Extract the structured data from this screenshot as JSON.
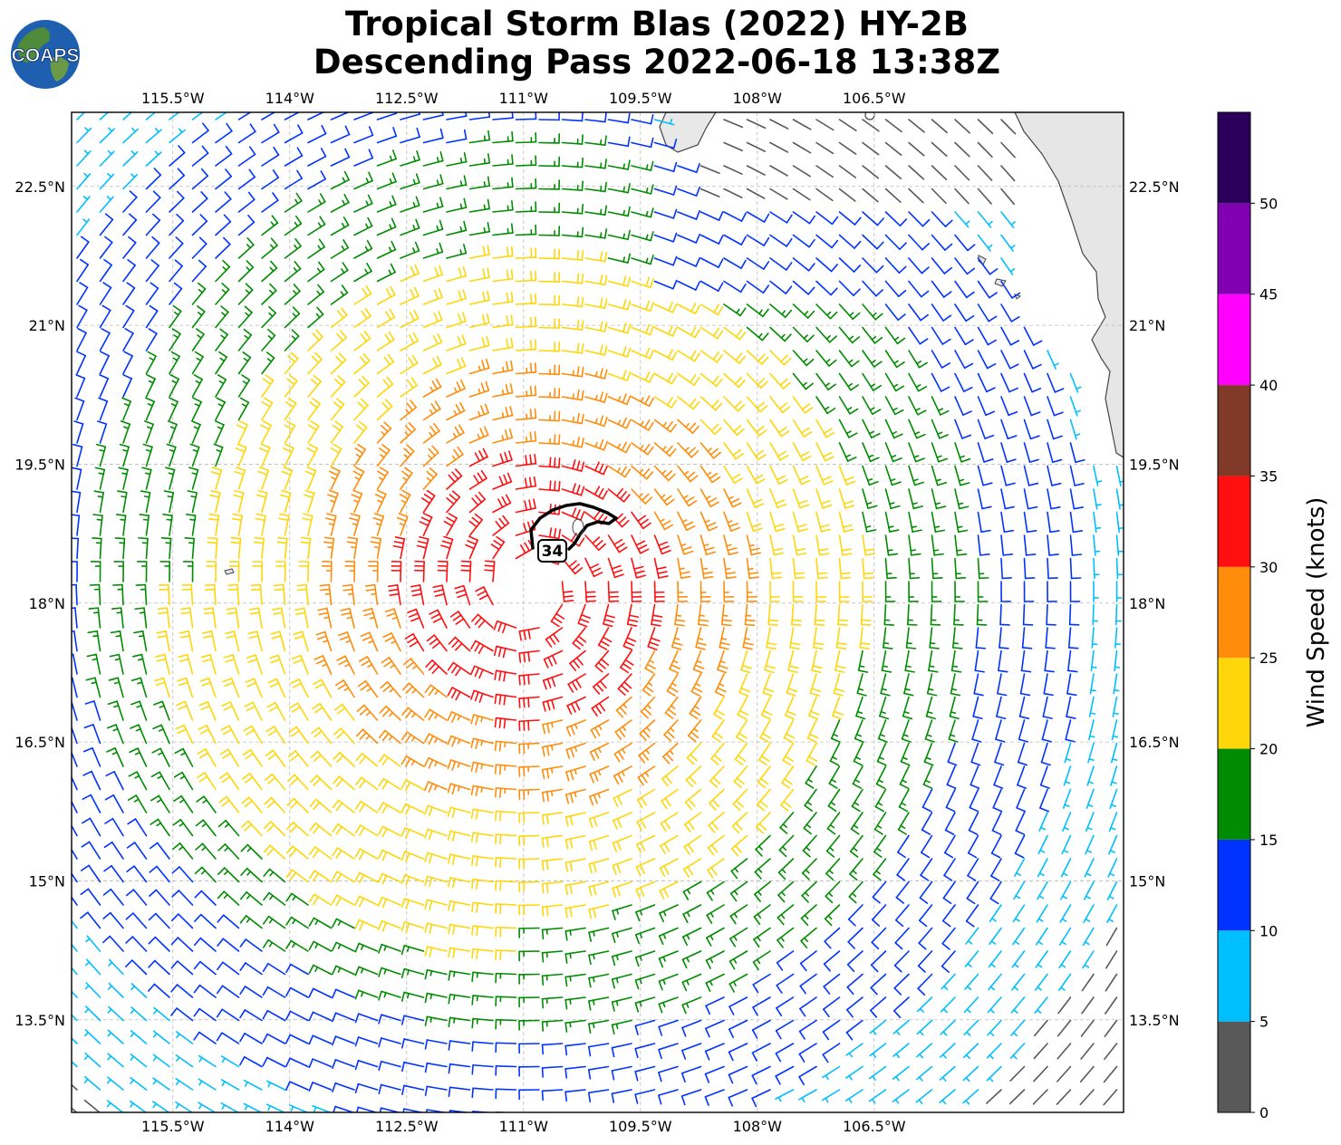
{
  "title": {
    "line1": "Tropical Storm Blas (2022) HY-2B",
    "line2": "Descending Pass 2022-06-18 13:38Z"
  },
  "logo": {
    "text": "COAPS"
  },
  "map": {
    "lon_range": [
      -116.8,
      -103.3
    ],
    "lat_range": [
      12.5,
      23.3
    ],
    "lon_ticks": [
      {
        "value": -115.5,
        "label": "115.5°W"
      },
      {
        "value": -114.0,
        "label": "114°W"
      },
      {
        "value": -112.5,
        "label": "112.5°W"
      },
      {
        "value": -111.0,
        "label": "111°W"
      },
      {
        "value": -109.5,
        "label": "109.5°W"
      },
      {
        "value": -108.0,
        "label": "108°W"
      },
      {
        "value": -106.5,
        "label": "106.5°W"
      }
    ],
    "lat_ticks": [
      {
        "value": 22.5,
        "label": "22.5°N"
      },
      {
        "value": 21.0,
        "label": "21°N"
      },
      {
        "value": 19.5,
        "label": "19.5°N"
      },
      {
        "value": 18.0,
        "label": "18°N"
      },
      {
        "value": 16.5,
        "label": "16.5°N"
      },
      {
        "value": 15.0,
        "label": "15°N"
      },
      {
        "value": 13.5,
        "label": "13.5°N"
      }
    ],
    "grid": true,
    "land_color": "#e6e6e6",
    "storm_center": {
      "lon": -110.9,
      "lat": 18.2
    },
    "contour_label": "34",
    "wind_barbs": "cyclonic circulation, speeds 0-35 knots"
  },
  "colorbar": {
    "label": "Wind Speed (knots)",
    "bins": [
      {
        "min": 0,
        "max": 5,
        "color": "#595959"
      },
      {
        "min": 5,
        "max": 10,
        "color": "#00bfff"
      },
      {
        "min": 10,
        "max": 15,
        "color": "#0033ff"
      },
      {
        "min": 15,
        "max": 20,
        "color": "#008c00"
      },
      {
        "min": 20,
        "max": 25,
        "color": "#ffd60a"
      },
      {
        "min": 25,
        "max": 30,
        "color": "#ff8c0a"
      },
      {
        "min": 30,
        "max": 35,
        "color": "#ff0f0f"
      },
      {
        "min": 35,
        "max": 40,
        "color": "#823a28"
      },
      {
        "min": 40,
        "max": 45,
        "color": "#ff00ff"
      },
      {
        "min": 45,
        "max": 50,
        "color": "#8000b2"
      },
      {
        "min": 50,
        "max": 55,
        "color": "#2b005c"
      }
    ],
    "tick_labels": [
      "0",
      "5",
      "10",
      "15",
      "20",
      "25",
      "30",
      "35",
      "40",
      "45",
      "50"
    ]
  }
}
